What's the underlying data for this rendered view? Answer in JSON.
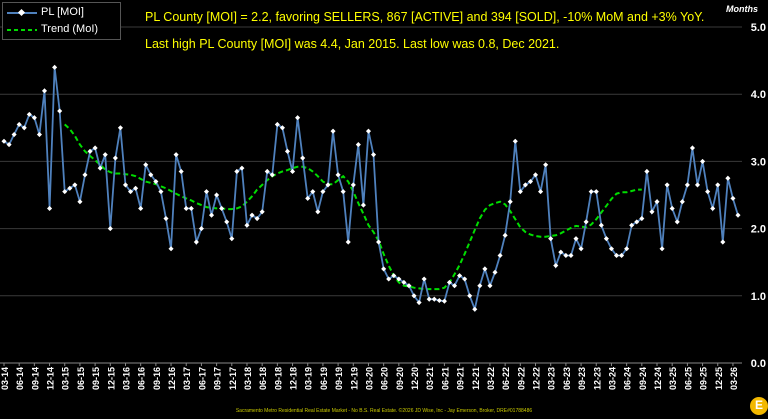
{
  "annotations": {
    "line1": "PL County [MOI] = 2.2, favoring SELLERS, 867 [ACTIVE] and 394 [SOLD], -10% MoM and +3% YoY.",
    "line2": "Last high PL County [MOI] was 4.4, Jan 2015. Last low was 0.8, Dec 2021."
  },
  "footer": "Sacramento Metro Residential Real Estate Market - No B.S. Real Estate. ©2026 JD Wise, Inc - Jay Emerson, Broker, DRE#01788486",
  "logo_letter": "E",
  "chart_data": {
    "type": "line",
    "ylabel": "Months",
    "ylim": [
      0,
      5
    ],
    "yticks": [
      "0.0",
      "1.0",
      "2.0",
      "3.0",
      "4.0",
      "5.0"
    ],
    "legend_position": "top-left",
    "x_labels": [
      "03-14",
      "06-14",
      "09-14",
      "12-14",
      "03-15",
      "06-15",
      "09-15",
      "12-15",
      "03-16",
      "06-16",
      "09-16",
      "12-16",
      "03-17",
      "06-17",
      "09-17",
      "12-17",
      "03-18",
      "06-18",
      "09-18",
      "12-18",
      "03-19",
      "06-19",
      "09-19",
      "12-19",
      "03-20",
      "06-20",
      "09-20",
      "12-20",
      "03-21",
      "06-21",
      "09-21",
      "12-21",
      "03-22",
      "06-22",
      "09-22",
      "12-22",
      "03-23",
      "06-23",
      "09-23",
      "12-23",
      "03-24",
      "06-24",
      "09-24",
      "12-24",
      "03-25",
      "06-25",
      "09-25",
      "12-25",
      "03-26"
    ],
    "series": [
      {
        "name": "PL [MOI]",
        "color": "#4f81bd",
        "marker_color": "#ffffff",
        "values": [
          3.3,
          3.25,
          3.4,
          3.55,
          3.5,
          3.7,
          3.65,
          3.4,
          4.05,
          2.3,
          4.4,
          3.75,
          2.55,
          2.6,
          2.65,
          2.4,
          2.8,
          3.15,
          3.2,
          2.9,
          3.1,
          2.0,
          3.05,
          3.5,
          2.65,
          2.55,
          2.6,
          2.3,
          2.95,
          2.8,
          2.7,
          2.55,
          2.15,
          1.7,
          3.1,
          2.85,
          2.3,
          2.3,
          1.8,
          2.0,
          2.55,
          2.2,
          2.5,
          2.3,
          2.1,
          1.85,
          2.85,
          2.9,
          2.05,
          2.2,
          2.15,
          2.25,
          2.85,
          2.8,
          3.55,
          3.5,
          3.15,
          2.85,
          3.65,
          3.05,
          2.45,
          2.55,
          2.25,
          2.55,
          2.65,
          3.45,
          2.8,
          2.55,
          1.8,
          2.65,
          3.25,
          2.35,
          3.45,
          3.1,
          1.8,
          1.4,
          1.25,
          1.3,
          1.25,
          1.2,
          1.15,
          1.0,
          0.9,
          1.25,
          0.95,
          0.95,
          0.93,
          0.92,
          1.2,
          1.15,
          1.3,
          1.25,
          1.0,
          0.8,
          1.15,
          1.4,
          1.15,
          1.35,
          1.6,
          1.9,
          2.4,
          3.3,
          2.55,
          2.65,
          2.7,
          2.8,
          2.55,
          2.95,
          1.85,
          1.45,
          1.65,
          1.6,
          1.6,
          1.85,
          1.7,
          2.1,
          2.55,
          2.55,
          2.05,
          1.85,
          1.7,
          1.6,
          1.6,
          1.7,
          2.05,
          2.1,
          2.15,
          2.85,
          2.25,
          2.4,
          1.7,
          2.65,
          2.3,
          2.1,
          2.4,
          2.65,
          3.2,
          2.65,
          3.0,
          2.55,
          2.3,
          2.65,
          1.8,
          2.75,
          2.45,
          2.2
        ]
      },
      {
        "name": "Trend (MoI)",
        "color": "#00dd00",
        "dashed": true,
        "start_label": "03-15",
        "values": [
          3.55,
          3.48,
          3.38,
          3.25,
          3.15,
          3.08,
          3.02,
          2.95,
          2.88,
          2.84,
          2.82,
          2.82,
          2.81,
          2.8,
          2.78,
          2.74,
          2.7,
          2.68,
          2.66,
          2.63,
          2.6,
          2.56,
          2.52,
          2.48,
          2.45,
          2.42,
          2.38,
          2.35,
          2.32,
          2.31,
          2.3,
          2.3,
          2.29,
          2.29,
          2.3,
          2.33,
          2.4,
          2.48,
          2.58,
          2.65,
          2.72,
          2.78,
          2.82,
          2.85,
          2.87,
          2.9,
          2.92,
          2.92,
          2.9,
          2.85,
          2.78,
          2.7,
          2.66,
          2.66,
          2.72,
          2.78,
          2.7,
          2.55,
          2.38,
          2.22,
          2.05,
          1.95,
          1.82,
          1.62,
          1.45,
          1.3,
          1.2,
          1.15,
          1.14,
          1.12,
          1.11,
          1.1,
          1.1,
          1.1,
          1.1,
          1.12,
          1.2,
          1.32,
          1.46,
          1.62,
          1.8,
          1.98,
          2.15,
          2.28,
          2.35,
          2.38,
          2.4,
          2.36,
          2.26,
          2.14,
          2.02,
          1.95,
          1.91,
          1.89,
          1.88,
          1.88,
          1.89,
          1.9,
          1.93,
          1.97,
          2.01,
          2.04,
          2.03,
          2.02,
          2.06,
          2.14,
          2.24,
          2.34,
          2.44,
          2.52,
          2.54,
          2.54,
          2.56,
          2.58,
          2.58
        ]
      }
    ]
  }
}
